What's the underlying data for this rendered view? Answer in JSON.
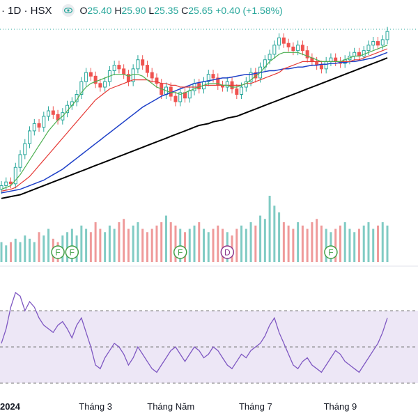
{
  "header": {
    "symbol": "· 1D · HSX",
    "eye_icon": "eye-icon",
    "o_label": "O",
    "o_value": "25.40",
    "h_label": "H",
    "h_value": "25.90",
    "l_label": "L",
    "l_value": "25.35",
    "c_label": "C",
    "c_value": "25.65",
    "change": "+0.40 (+1.58%)"
  },
  "colors": {
    "up": "#26a69a",
    "down": "#ef5350",
    "ma_short": "#4caf50",
    "ma_mid": "#e53935",
    "ma_long": "#1e40c8",
    "ma_200": "#000000",
    "rsi": "#7e57c2",
    "rsi_band": "#ede7f6"
  },
  "chart_data": {
    "type": "candlestick",
    "x_axis_labels": [
      "2024",
      "Tháng 3",
      "Tháng Năm",
      "Tháng 7",
      "Tháng 9"
    ],
    "last_close": 25.65,
    "series": [
      {
        "name": "price",
        "close": [
          17.2,
          17.4,
          17.3,
          18.2,
          18.9,
          19.5,
          20.2,
          20.6,
          20.4,
          21.0,
          21.3,
          21.1,
          20.8,
          21.2,
          21.6,
          21.8,
          22.2,
          22.9,
          23.4,
          23.2,
          22.8,
          22.6,
          22.9,
          23.5,
          23.8,
          23.6,
          23.3,
          22.9,
          23.6,
          24.1,
          23.8,
          23.4,
          23.1,
          22.8,
          22.2,
          22.6,
          22.1,
          21.8,
          22.3,
          22.0,
          22.4,
          22.8,
          22.5,
          22.9,
          23.3,
          23.1,
          22.7,
          22.6,
          22.9,
          22.5,
          22.2,
          22.6,
          22.9,
          23.4,
          23.1,
          23.7,
          24.1,
          24.4,
          24.9,
          25.3,
          25.0,
          24.8,
          24.6,
          24.9,
          24.6,
          24.2,
          24.0,
          23.8,
          23.6,
          24.0,
          24.2,
          24.0,
          23.9,
          24.1,
          24.3,
          24.5,
          24.3,
          24.6,
          24.9,
          25.1,
          24.9,
          25.2,
          25.65
        ]
      },
      {
        "name": "ma_short",
        "values": [
          17.0,
          17.1,
          17.2,
          17.5,
          17.8,
          18.2,
          18.6,
          19.0,
          19.4,
          19.8,
          20.2,
          20.5,
          20.8,
          21.0,
          21.3,
          21.6,
          21.9,
          22.3,
          22.6,
          22.8,
          22.9,
          23.0,
          23.1,
          23.2,
          23.3,
          23.3,
          23.3,
          23.2,
          23.3,
          23.3,
          23.2,
          23.0,
          22.8,
          22.6,
          22.5,
          22.4,
          22.3,
          22.3,
          22.2,
          22.3,
          22.4,
          22.5,
          22.6,
          22.7,
          22.8,
          22.8,
          22.8,
          22.7,
          22.7,
          22.6,
          22.6,
          22.7,
          22.8,
          23.0,
          23.2,
          23.4,
          23.7,
          24.0,
          24.2,
          24.4,
          24.5,
          24.5,
          24.5,
          24.5,
          24.4,
          24.3,
          24.2,
          24.1,
          24.0,
          24.0,
          24.0,
          24.0,
          24.0,
          24.1,
          24.2,
          24.3,
          24.3,
          24.4,
          24.5,
          24.6,
          24.7,
          24.8,
          24.9
        ]
      },
      {
        "name": "ma_mid",
        "values": [
          16.9,
          16.95,
          17.0,
          17.1,
          17.3,
          17.5,
          17.7,
          18.0,
          18.3,
          18.6,
          18.9,
          19.2,
          19.5,
          19.8,
          20.1,
          20.4,
          20.7,
          21.0,
          21.3,
          21.6,
          21.9,
          22.1,
          22.3,
          22.5,
          22.6,
          22.7,
          22.8,
          22.9,
          23.0,
          23.0,
          23.0,
          23.0,
          22.9,
          22.9,
          22.8,
          22.8,
          22.7,
          22.7,
          22.6,
          22.6,
          22.6,
          22.6,
          22.6,
          22.7,
          22.7,
          22.7,
          22.7,
          22.7,
          22.7,
          22.7,
          22.7,
          22.7,
          22.8,
          22.8,
          22.9,
          23.0,
          23.1,
          23.2,
          23.3,
          23.4,
          23.6,
          23.7,
          23.8,
          23.9,
          24.0,
          24.0,
          24.0,
          24.0,
          24.0,
          24.0,
          24.0,
          24.0,
          24.0,
          24.0,
          24.0,
          24.1,
          24.1,
          24.2,
          24.3,
          24.4,
          24.5,
          24.6,
          24.7
        ]
      },
      {
        "name": "ma_long",
        "values": [
          16.8,
          16.85,
          16.9,
          16.95,
          17.0,
          17.1,
          17.2,
          17.3,
          17.4,
          17.5,
          17.65,
          17.8,
          17.95,
          18.1,
          18.3,
          18.5,
          18.7,
          18.9,
          19.1,
          19.3,
          19.5,
          19.7,
          19.9,
          20.1,
          20.3,
          20.5,
          20.7,
          20.9,
          21.1,
          21.3,
          21.5,
          21.65,
          21.8,
          21.95,
          22.1,
          22.2,
          22.3,
          22.4,
          22.5,
          22.6,
          22.7,
          22.8,
          22.85,
          22.9,
          22.95,
          23.0,
          23.05,
          23.1,
          23.1,
          23.15,
          23.2,
          23.25,
          23.3,
          23.3,
          23.35,
          23.4,
          23.45,
          23.5,
          23.5,
          23.55,
          23.6,
          23.6,
          23.65,
          23.7,
          23.7,
          23.75,
          23.8,
          23.8,
          23.85,
          23.85,
          23.9,
          23.9,
          23.95,
          23.95,
          24.0,
          24.0,
          24.05,
          24.1,
          24.15,
          24.2,
          24.3,
          24.4,
          24.5
        ]
      },
      {
        "name": "ma_200",
        "values": [
          16.5,
          16.55,
          16.6,
          16.65,
          16.7,
          16.8,
          16.9,
          17.0,
          17.1,
          17.2,
          17.3,
          17.4,
          17.5,
          17.6,
          17.7,
          17.8,
          17.9,
          18.0,
          18.1,
          18.2,
          18.3,
          18.4,
          18.5,
          18.6,
          18.7,
          18.8,
          18.9,
          19.0,
          19.1,
          19.2,
          19.3,
          19.4,
          19.5,
          19.6,
          19.7,
          19.8,
          19.9,
          20.0,
          20.1,
          20.2,
          20.3,
          20.4,
          20.5,
          20.55,
          20.6,
          20.7,
          20.75,
          20.8,
          20.9,
          20.95,
          21.0,
          21.1,
          21.2,
          21.3,
          21.4,
          21.5,
          21.6,
          21.7,
          21.8,
          21.9,
          22.0,
          22.1,
          22.2,
          22.3,
          22.4,
          22.5,
          22.6,
          22.7,
          22.8,
          22.9,
          23.0,
          23.1,
          23.2,
          23.3,
          23.4,
          23.5,
          23.6,
          23.7,
          23.8,
          23.9,
          24.0,
          24.1,
          24.2
        ]
      },
      {
        "name": "volume",
        "values": [
          0.3,
          0.25,
          0.3,
          0.35,
          0.3,
          0.4,
          0.35,
          0.3,
          0.45,
          0.4,
          0.5,
          0.35,
          0.3,
          0.4,
          0.45,
          0.5,
          0.4,
          0.55,
          0.5,
          0.45,
          0.6,
          0.5,
          0.45,
          0.55,
          0.5,
          0.6,
          0.65,
          0.5,
          0.55,
          0.6,
          0.5,
          0.45,
          0.5,
          0.55,
          0.6,
          0.7,
          0.6,
          0.55,
          0.5,
          0.45,
          0.5,
          0.55,
          0.6,
          0.5,
          0.45,
          0.5,
          0.55,
          0.5,
          0.45,
          0.4,
          0.5,
          0.55,
          0.5,
          0.6,
          0.55,
          0.7,
          0.65,
          1.0,
          0.85,
          0.75,
          0.6,
          0.55,
          0.5,
          0.6,
          0.55,
          0.5,
          0.6,
          0.65,
          0.55,
          0.5,
          0.45,
          0.5,
          0.55,
          0.6,
          0.5,
          0.45,
          0.5,
          0.55,
          0.6,
          0.5,
          0.55,
          0.6,
          0.55
        ]
      },
      {
        "name": "rsi",
        "values": [
          52,
          60,
          72,
          80,
          78,
          70,
          75,
          72,
          66,
          62,
          60,
          58,
          62,
          64,
          60,
          55,
          62,
          66,
          58,
          50,
          40,
          38,
          44,
          48,
          52,
          50,
          46,
          40,
          44,
          50,
          46,
          42,
          38,
          36,
          40,
          44,
          48,
          50,
          46,
          42,
          46,
          50,
          48,
          44,
          46,
          50,
          48,
          44,
          40,
          38,
          42,
          46,
          44,
          48,
          50,
          52,
          56,
          62,
          66,
          58,
          52,
          46,
          40,
          38,
          42,
          44,
          40,
          38,
          36,
          40,
          44,
          48,
          46,
          42,
          40,
          38,
          36,
          40,
          44,
          48,
          52,
          58,
          66
        ]
      }
    ],
    "rsi_levels": [
      70,
      50,
      30
    ],
    "dividend_markers": [
      "F",
      "F",
      "F",
      "D",
      "F"
    ]
  }
}
